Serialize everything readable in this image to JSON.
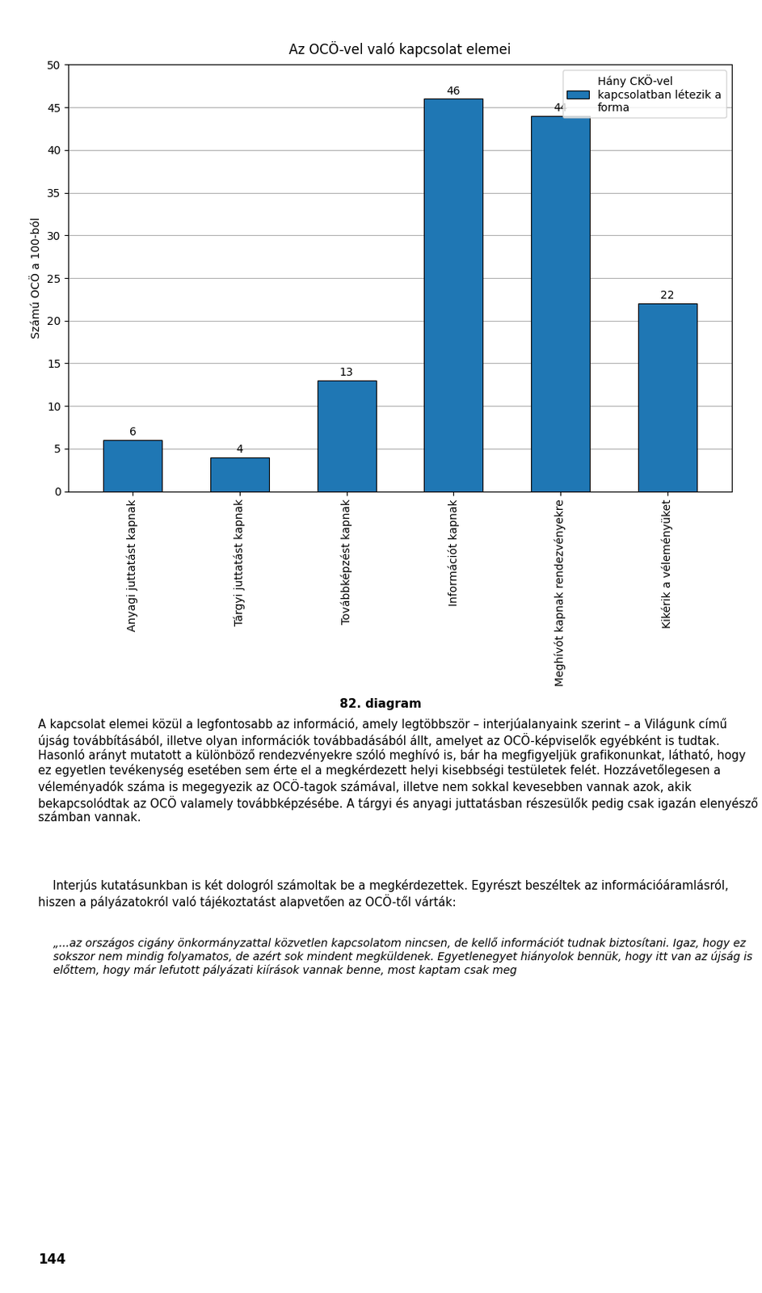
{
  "chart_data": {
    "type": "bar",
    "title": "Az OCÖ-vel való kapcsolat elemei",
    "categories": [
      "Anyagi juttatást kapnak",
      "Tárgyi juttatást kapnak",
      "Továbbképzést kapnak",
      "Információt kapnak",
      "Meghívót kapnak rendezvényekre",
      "Kikérik a véleményüket"
    ],
    "series": [
      {
        "name": "Hány CKÖ-vel\nkapcsolatban létezik a\nforma",
        "values": [
          6,
          4,
          13,
          46,
          44,
          22
        ]
      }
    ],
    "ylabel": "Számú OCÖ a 100-ból",
    "ylim": [
      0,
      50
    ],
    "yticks": [
      0,
      5,
      10,
      15,
      20,
      25,
      30,
      35,
      40,
      45,
      50
    ],
    "grid": true,
    "legend": "upper right",
    "data_labels": true,
    "annotations": [
      "82. diagram",
      "A kapcsolat elemei közül a legfontosabb az információ, amely legtöbbször – interjúalanyaink szerint – a Világunk című újság továbbításából, illetve olyan információk továbbadásából állt, amelyet az OCÖ-képviselők egyébként is tudtak. Hasonló arányt mutatott a különböző rendezvényekre szóló meghívó is, bár ha megfigyeljük grafikonunkat, látható, hogy ez egyetlen tevékenység esetében sem érte el a megkérdezett helyi kisebbségi testületek felét. Hozzávetőlegesen a véleményadók száma is megegyezik az OCÖ-tagok számával, illetve nem sokkal kevesebben vannak azok, akik bekapcsolódtak az OCÖ valamely továbbképzésébe. A tárgyi és anyagi juttatásban részesülők pedig csak igazán elenyésző számban vannak.",
      "    Interjús kutatásunkban is két dologról számoltak be a megkérdezettek. Egyrészt beszéltek az információáramlásról, hiszen a pályázatokról való tájékoztatást alapvetően az OCÖ-től várták:",
      "„...az országos cigány önkormányzattal közvetlen kapcsolatom nincsen, de kellő információt tudnak biztosítani. Igaz, hogy ez sokszor nem mindig folyamatos, de azért sok mindent megküldenek. Egyetlenegyet hiányolok bennük, hogy itt van az újság is előttem, hogy már lefutott pályázati kiírások vannak benne, most kaptam csak meg",
      "144"
    ]
  }
}
